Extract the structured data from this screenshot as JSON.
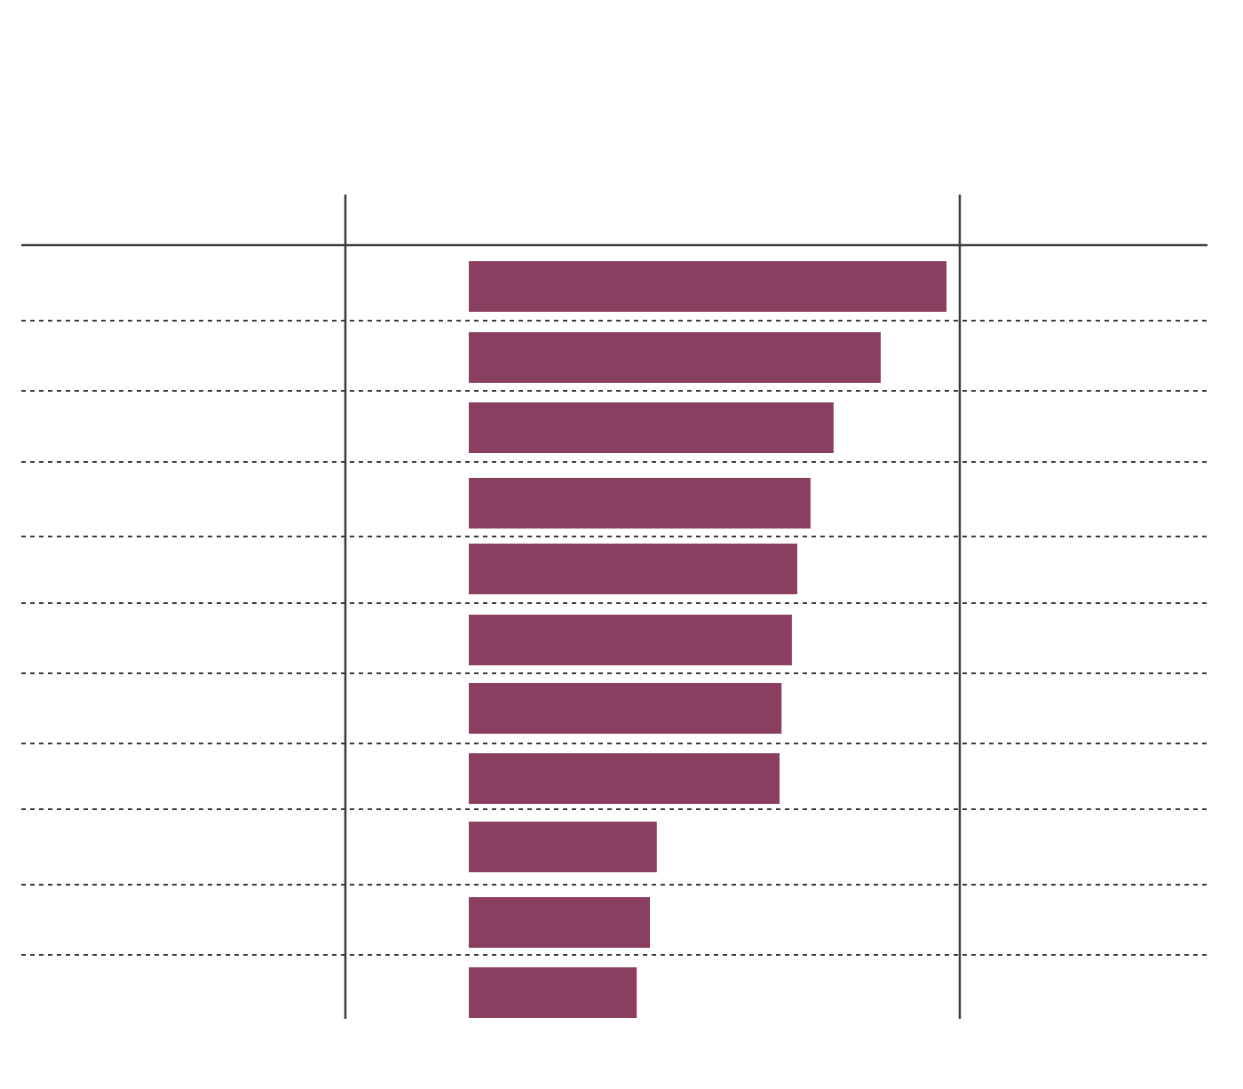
{
  "chart_data": {
    "type": "bar",
    "orientation": "horizontal",
    "color": "#8a3f60",
    "xlim": [
      0,
      100
    ],
    "values": [
      97.3,
      83.9,
      74.3,
      69.6,
      66.9,
      65.8,
      63.7,
      63.3,
      38.3,
      36.9,
      34.2
    ]
  }
}
